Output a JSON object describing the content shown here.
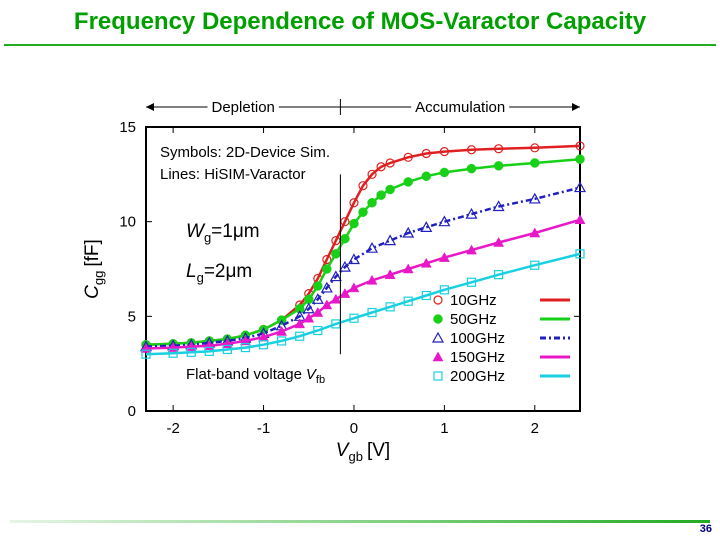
{
  "slide": {
    "title": "Frequency Dependence of MOS-Varactor Capacity",
    "page_number": "36"
  },
  "chart_data": {
    "type": "line",
    "title": "",
    "xlabel_main": "V",
    "xlabel_sub": "gb",
    "xlabel_unit": "[V]",
    "ylabel_main": "C",
    "ylabel_sub": "gg",
    "ylabel_unit": "[fF]",
    "xlim": [
      -2.3,
      2.5
    ],
    "ylim": [
      0,
      15
    ],
    "xticks": [
      -2,
      -1,
      0,
      1,
      2
    ],
    "yticks": [
      0,
      5,
      10,
      15
    ],
    "regions": {
      "left": "Depletion",
      "right": "Accumulation"
    },
    "vfb": -0.15,
    "annotations": {
      "symbols_note": "Symbols: 2D-Device Sim.",
      "lines_note": "Lines: HiSIM-Varactor",
      "wg": {
        "main": "W",
        "sub": "g",
        "value": "=1",
        "unit": "μm"
      },
      "lg": {
        "main": "L",
        "sub": "g",
        "value": "=2",
        "unit": "μm"
      },
      "flatband": "Flat-band voltage",
      "vfb_main": "V",
      "vfb_sub": "fb"
    },
    "legend_position": "bottom-right",
    "colors": {
      "10GHz": "#e02020",
      "50GHz": "#18d018",
      "100GHz": "#2020c0",
      "150GHz": "#e818c8",
      "200GHz": "#18d0e0"
    },
    "series": [
      {
        "name": "10GHz",
        "marker": "open-circle",
        "line": "solid",
        "x": [
          -2.3,
          -2.0,
          -1.8,
          -1.6,
          -1.4,
          -1.2,
          -1.0,
          -0.8,
          -0.6,
          -0.5,
          -0.4,
          -0.3,
          -0.2,
          -0.1,
          0.0,
          0.1,
          0.2,
          0.3,
          0.4,
          0.6,
          0.8,
          1.0,
          1.3,
          1.6,
          2.0,
          2.5
        ],
        "y": [
          3.5,
          3.55,
          3.6,
          3.7,
          3.8,
          4.0,
          4.3,
          4.8,
          5.6,
          6.2,
          7.0,
          8.0,
          9.0,
          10.0,
          11.0,
          11.9,
          12.5,
          12.9,
          13.1,
          13.4,
          13.6,
          13.7,
          13.8,
          13.85,
          13.9,
          14.0
        ]
      },
      {
        "name": "50GHz",
        "marker": "filled-circle",
        "line": "solid",
        "x": [
          -2.3,
          -2.0,
          -1.8,
          -1.6,
          -1.4,
          -1.2,
          -1.0,
          -0.8,
          -0.6,
          -0.5,
          -0.4,
          -0.3,
          -0.2,
          -0.1,
          0.0,
          0.1,
          0.2,
          0.3,
          0.4,
          0.6,
          0.8,
          1.0,
          1.3,
          1.6,
          2.0,
          2.5
        ],
        "y": [
          3.5,
          3.55,
          3.6,
          3.7,
          3.8,
          4.0,
          4.3,
          4.8,
          5.4,
          5.9,
          6.6,
          7.5,
          8.3,
          9.1,
          9.9,
          10.5,
          11.0,
          11.4,
          11.7,
          12.1,
          12.4,
          12.6,
          12.8,
          12.95,
          13.1,
          13.3
        ]
      },
      {
        "name": "100GHz",
        "marker": "open-triangle",
        "line": "dash-dot",
        "x": [
          -2.3,
          -2.0,
          -1.8,
          -1.6,
          -1.4,
          -1.2,
          -1.0,
          -0.8,
          -0.6,
          -0.5,
          -0.4,
          -0.3,
          -0.2,
          -0.1,
          0.0,
          0.2,
          0.4,
          0.6,
          0.8,
          1.0,
          1.3,
          1.6,
          2.0,
          2.5
        ],
        "y": [
          3.4,
          3.45,
          3.5,
          3.6,
          3.7,
          3.85,
          4.1,
          4.5,
          5.0,
          5.4,
          5.9,
          6.5,
          7.1,
          7.6,
          8.0,
          8.6,
          9.0,
          9.4,
          9.7,
          10.0,
          10.4,
          10.8,
          11.2,
          11.8
        ]
      },
      {
        "name": "150GHz",
        "marker": "filled-triangle",
        "line": "solid",
        "x": [
          -2.3,
          -2.0,
          -1.8,
          -1.6,
          -1.4,
          -1.2,
          -1.0,
          -0.8,
          -0.6,
          -0.5,
          -0.4,
          -0.3,
          -0.2,
          -0.1,
          0.0,
          0.2,
          0.4,
          0.6,
          0.8,
          1.0,
          1.3,
          1.6,
          2.0,
          2.5
        ],
        "y": [
          3.3,
          3.35,
          3.4,
          3.45,
          3.55,
          3.7,
          3.9,
          4.2,
          4.6,
          4.9,
          5.2,
          5.6,
          5.9,
          6.2,
          6.5,
          6.9,
          7.2,
          7.5,
          7.8,
          8.1,
          8.5,
          8.9,
          9.4,
          10.1
        ]
      },
      {
        "name": "200GHz",
        "marker": "open-square",
        "line": "solid",
        "x": [
          -2.3,
          -2.0,
          -1.8,
          -1.6,
          -1.4,
          -1.2,
          -1.0,
          -0.8,
          -0.6,
          -0.4,
          -0.2,
          0.0,
          0.2,
          0.4,
          0.6,
          0.8,
          1.0,
          1.3,
          1.6,
          2.0,
          2.5
        ],
        "y": [
          3.0,
          3.05,
          3.1,
          3.15,
          3.25,
          3.35,
          3.5,
          3.7,
          3.95,
          4.25,
          4.6,
          4.9,
          5.2,
          5.5,
          5.8,
          6.1,
          6.4,
          6.8,
          7.2,
          7.7,
          8.3
        ]
      }
    ]
  }
}
